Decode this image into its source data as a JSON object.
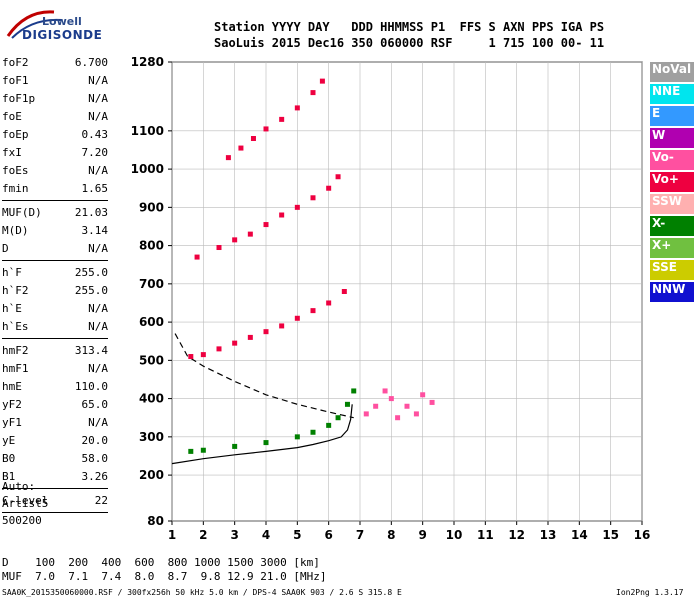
{
  "logo": {
    "line1": "Lowell",
    "line2": "DIGISONDE"
  },
  "header": {
    "line1": "Station YYYY DAY   DDD HHMMSS P1  FFS S AXN PPS IGA PS",
    "line2": "SaoLuis 2015 Dec16 350 060000 RSF     1 715 100 00- 11"
  },
  "params": [
    {
      "label": "foF2",
      "value": "6.700"
    },
    {
      "label": "foF1",
      "value": "N/A"
    },
    {
      "label": "foF1p",
      "value": "N/A"
    },
    {
      "label": "foE",
      "value": "N/A"
    },
    {
      "label": "foEp",
      "value": "0.43"
    },
    {
      "label": "fxI",
      "value": "7.20"
    },
    {
      "label": "foEs",
      "value": "N/A"
    },
    {
      "label": "fmin",
      "value": "1.65"
    },
    {
      "sep": true
    },
    {
      "label": "MUF(D)",
      "value": "21.03"
    },
    {
      "label": "M(D)",
      "value": "3.14"
    },
    {
      "label": "D",
      "value": "N/A"
    },
    {
      "sep": true
    },
    {
      "label": "h`F",
      "value": "255.0"
    },
    {
      "label": "h`F2",
      "value": "255.0"
    },
    {
      "label": "h`E",
      "value": "N/A"
    },
    {
      "label": "h`Es",
      "value": "N/A"
    },
    {
      "sep": true
    },
    {
      "label": "hmF2",
      "value": "313.4"
    },
    {
      "label": "hmF1",
      "value": "N/A"
    },
    {
      "label": "hmE",
      "value": "110.0"
    },
    {
      "label": "yF2",
      "value": "65.0"
    },
    {
      "label": "yF1",
      "value": "N/A"
    },
    {
      "label": "yE",
      "value": "20.0"
    },
    {
      "label": "B0",
      "value": "58.0"
    },
    {
      "label": "B1",
      "value": "3.26"
    },
    {
      "sep": true
    },
    {
      "label": "C-level",
      "value": "22"
    },
    {
      "sep": true
    }
  ],
  "auto": {
    "line1": "Auto:",
    "line2": "Artist5",
    "line3": "500200"
  },
  "legend": [
    {
      "label": "NoVal",
      "color": "#a0a0a0"
    },
    {
      "label": "NNE",
      "color": "#00e5ee"
    },
    {
      "label": "E",
      "color": "#3399ff"
    },
    {
      "label": "W",
      "color": "#b000b0"
    },
    {
      "label": "Vo-",
      "color": "#ff50a0"
    },
    {
      "label": "Vo+",
      "color": "#ee0040"
    },
    {
      "label": "SSW",
      "color": "#ffb0b0"
    },
    {
      "label": "X-",
      "color": "#008000"
    },
    {
      "label": "X+",
      "color": "#70c040"
    },
    {
      "label": "SSE",
      "color": "#cccc00"
    },
    {
      "label": "NNW",
      "color": "#1010d0"
    }
  ],
  "dtable": {
    "row1": "D    100  200  400  600  800 1000 1500 3000 [km]",
    "row2": "MUF  7.0  7.1  7.4  8.0  8.7  9.8 12.9 21.0 [MHz]"
  },
  "footer": "SAA0K_2015350060000.RSF / 300fx256h 50 kHz 5.0 km / DPS-4 SAA0K 903 / 2.6 S 315.8 E",
  "version": "Ion2Png 1.3.17",
  "chart_data": {
    "type": "scatter",
    "x_ticks": [
      1,
      2,
      3,
      4,
      5,
      6,
      7,
      8,
      9,
      10,
      11,
      12,
      13,
      14,
      15,
      16
    ],
    "y_ticks": [
      80,
      200,
      300,
      400,
      500,
      600,
      700,
      800,
      900,
      1000,
      1100,
      1280
    ],
    "xlim": [
      1,
      16
    ],
    "ylim": [
      80,
      1280
    ],
    "grid": true,
    "series": [
      {
        "color": "#ee0040",
        "points": [
          [
            1.6,
            510
          ],
          [
            2.0,
            515
          ],
          [
            2.5,
            530
          ],
          [
            3.0,
            545
          ],
          [
            3.5,
            560
          ],
          [
            4.0,
            575
          ],
          [
            4.5,
            590
          ],
          [
            5.0,
            610
          ],
          [
            5.5,
            630
          ],
          [
            6.0,
            650
          ],
          [
            6.5,
            680
          ]
        ]
      },
      {
        "color": "#ee0040",
        "points": [
          [
            1.8,
            770
          ],
          [
            2.5,
            795
          ],
          [
            3.0,
            815
          ],
          [
            3.5,
            830
          ],
          [
            4.0,
            855
          ],
          [
            4.5,
            880
          ],
          [
            5.0,
            900
          ],
          [
            5.5,
            925
          ],
          [
            6.0,
            950
          ],
          [
            6.3,
            980
          ]
        ]
      },
      {
        "color": "#ee0040",
        "points": [
          [
            2.8,
            1030
          ],
          [
            3.2,
            1055
          ],
          [
            3.6,
            1080
          ],
          [
            4.0,
            1105
          ],
          [
            4.5,
            1130
          ],
          [
            5.0,
            1160
          ],
          [
            5.5,
            1200
          ],
          [
            5.8,
            1230
          ]
        ]
      },
      {
        "color": "#008000",
        "points": [
          [
            1.6,
            262
          ],
          [
            2.0,
            265
          ],
          [
            3.0,
            275
          ],
          [
            4.0,
            285
          ],
          [
            5.0,
            300
          ],
          [
            5.5,
            312
          ],
          [
            6.0,
            330
          ],
          [
            6.3,
            350
          ],
          [
            6.6,
            385
          ],
          [
            6.8,
            420
          ]
        ]
      },
      {
        "color": "#ff50a0",
        "points": [
          [
            7.2,
            360
          ],
          [
            7.5,
            380
          ],
          [
            8.0,
            400
          ],
          [
            8.5,
            380
          ],
          [
            9.0,
            410
          ],
          [
            9.3,
            390
          ],
          [
            7.8,
            420
          ],
          [
            8.2,
            350
          ],
          [
            8.8,
            360
          ]
        ]
      }
    ],
    "curves": [
      {
        "style": "solid",
        "points": [
          [
            1.0,
            230
          ],
          [
            2.0,
            243
          ],
          [
            3.0,
            253
          ],
          [
            4.0,
            262
          ],
          [
            5.0,
            272
          ],
          [
            5.5,
            280
          ],
          [
            6.0,
            290
          ],
          [
            6.4,
            300
          ],
          [
            6.6,
            318
          ],
          [
            6.7,
            345
          ],
          [
            6.75,
            385
          ]
        ]
      },
      {
        "style": "dashed",
        "points": [
          [
            1.1,
            570
          ],
          [
            1.5,
            510
          ],
          [
            2.0,
            485
          ],
          [
            3.0,
            445
          ],
          [
            4.0,
            410
          ],
          [
            5.0,
            385
          ],
          [
            6.0,
            365
          ],
          [
            6.8,
            350
          ]
        ]
      }
    ]
  }
}
